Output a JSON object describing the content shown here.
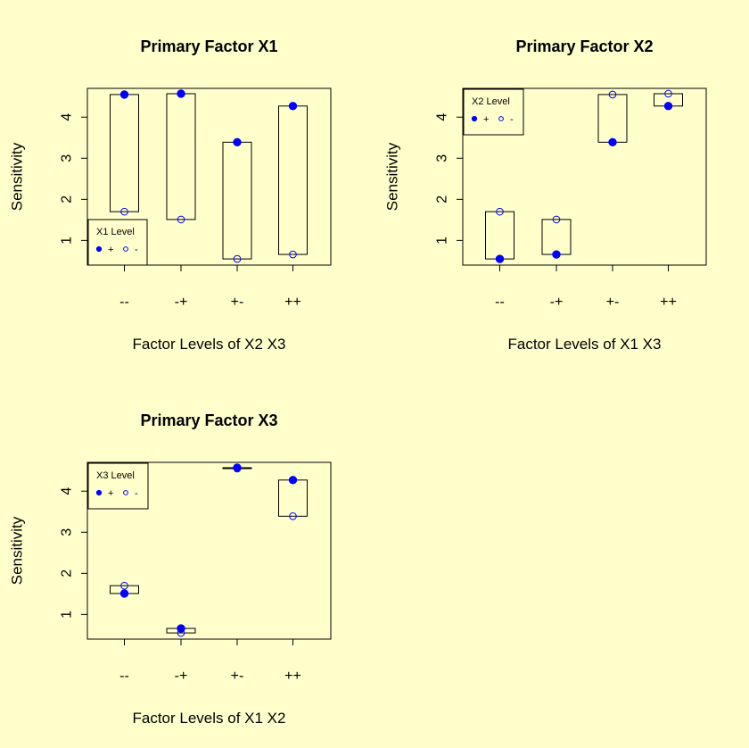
{
  "chart_data": [
    {
      "type": "scatter",
      "title": "Primary Factor X1",
      "xlabel": "Factor Levels of X2 X3",
      "ylabel": "Sensitivity",
      "categories": [
        "--",
        "-+",
        "+-",
        "++"
      ],
      "ylim": [
        0.4,
        4.7
      ],
      "yticks": [
        1,
        2,
        3,
        4
      ],
      "legend": {
        "title": "X1 Level",
        "entries": [
          "+",
          "-"
        ],
        "position": "bottom-left"
      },
      "series": [
        {
          "name": "+",
          "marker": "filled",
          "values": [
            4.55,
            4.57,
            3.39,
            4.27
          ]
        },
        {
          "name": "-",
          "marker": "open",
          "values": [
            1.7,
            1.51,
            0.55,
            0.66
          ]
        }
      ]
    },
    {
      "type": "scatter",
      "title": "Primary Factor X2",
      "xlabel": "Factor Levels of X1 X3",
      "ylabel": "Sensitivity",
      "categories": [
        "--",
        "-+",
        "+-",
        "++"
      ],
      "ylim": [
        0.4,
        4.7
      ],
      "yticks": [
        1,
        2,
        3,
        4
      ],
      "legend": {
        "title": "X2 Level",
        "entries": [
          "+",
          "-"
        ],
        "position": "top-left"
      },
      "series": [
        {
          "name": "+",
          "marker": "filled",
          "values": [
            0.55,
            0.66,
            3.39,
            4.27
          ]
        },
        {
          "name": "-",
          "marker": "open",
          "values": [
            1.7,
            1.51,
            4.55,
            4.57
          ]
        }
      ]
    },
    {
      "type": "scatter",
      "title": "Primary Factor X3",
      "xlabel": "Factor Levels of X1 X2",
      "ylabel": "Sensitivity",
      "categories": [
        "--",
        "-+",
        "+-",
        "++"
      ],
      "ylim": [
        0.4,
        4.7
      ],
      "yticks": [
        1,
        2,
        3,
        4
      ],
      "legend": {
        "title": "X3 Level",
        "entries": [
          "+",
          "-"
        ],
        "position": "top-left"
      },
      "series": [
        {
          "name": "+",
          "marker": "filled",
          "values": [
            1.51,
            0.66,
            4.57,
            4.27
          ]
        },
        {
          "name": "-",
          "marker": "open",
          "values": [
            1.7,
            0.55,
            4.55,
            3.39
          ]
        }
      ]
    }
  ],
  "colors": {
    "background": "#ffffcc",
    "point": "#0000ff",
    "frame": "#000000"
  }
}
